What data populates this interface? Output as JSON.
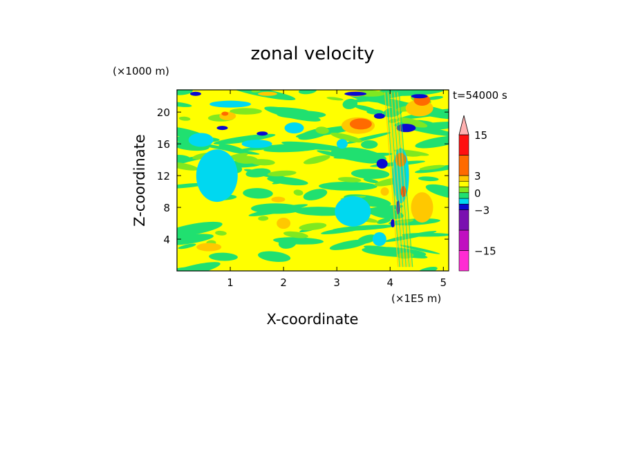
{
  "chart_data": {
    "type": "heatmap",
    "title": "zonal velocity",
    "xlabel": "X-coordinate",
    "ylabel": "Z-coordinate",
    "x_unit": "(×1E5 m)",
    "y_unit": "(×1000 m)",
    "time_label": "t=54000 s",
    "xlim": [
      0,
      5.1
    ],
    "ylim": [
      0,
      22.8
    ],
    "x_ticks": [
      "1",
      "2",
      "3",
      "4",
      "5"
    ],
    "x_tick_values": [
      1,
      2,
      3,
      4,
      5
    ],
    "y_ticks": [
      "4",
      "8",
      "12",
      "16",
      "20"
    ],
    "y_tick_values": [
      4,
      8,
      12,
      16,
      20
    ],
    "colorbar": {
      "levels": [
        -21,
        -15,
        -9,
        -3,
        -2,
        -1,
        0,
        1,
        2,
        3,
        9,
        15,
        21
      ],
      "colors": [
        "#ff2bd3",
        "#c010c0",
        "#7a10b0",
        "#0a0ad0",
        "#00d8f0",
        "#20e070",
        "#80e820",
        "#ffff00",
        "#ffc800",
        "#ff6a00",
        "#ff1010",
        "#ff8a8a",
        "#ffb0b0"
      ],
      "tick_labels": [
        "15",
        "3",
        "0",
        "-3",
        "-15"
      ],
      "tick_values": [
        15,
        3,
        0,
        -3,
        -15
      ],
      "extend_max": true
    }
  }
}
